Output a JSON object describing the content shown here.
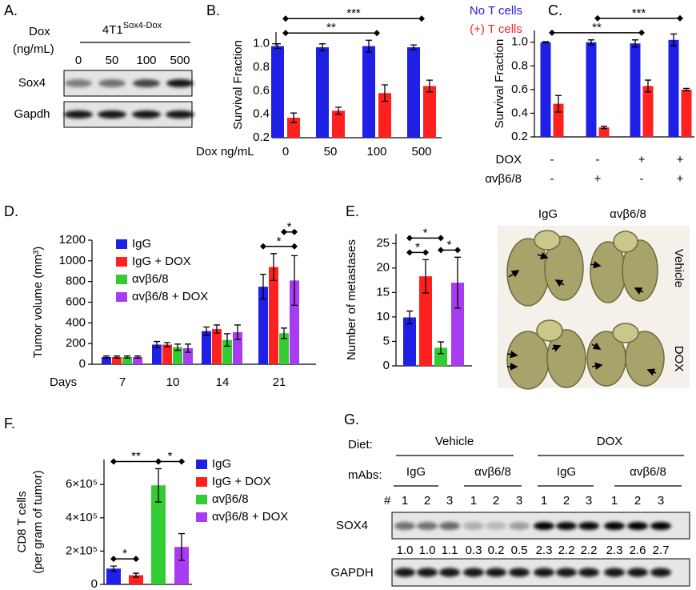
{
  "chart_data": [
    {
      "panel": "B.",
      "type": "bar",
      "ylabel": "Survival Fraction",
      "xlabel": "Dox ng/mL",
      "categories": [
        "0",
        "50",
        "100",
        "500"
      ],
      "series": [
        {
          "name": "No T cells",
          "color": "#1f1fe6",
          "values": [
            0.98,
            0.97,
            0.98,
            0.97
          ],
          "errors": [
            0.02,
            0.03,
            0.05,
            0.02
          ]
        },
        {
          "name": "(+) T cells",
          "color": "#ff2020",
          "values": [
            0.37,
            0.43,
            0.58,
            0.64
          ],
          "errors": [
            0.04,
            0.03,
            0.07,
            0.05
          ]
        }
      ],
      "ylim": [
        0.2,
        1.1
      ],
      "yticks": [
        0.2,
        0.4,
        0.6,
        0.8,
        {
          "value": 1,
          "label": "1.0"
        }
      ],
      "significance": [
        {
          "from": 0,
          "to": 2,
          "label": "**"
        },
        {
          "from": 0,
          "to": 3,
          "label": "***"
        }
      ]
    },
    {
      "panel": "C.",
      "type": "bar",
      "ylabel": "Survival Fraction",
      "categories": [
        null,
        null,
        null,
        null
      ],
      "x_rows": [
        {
          "label": "DOX",
          "values": [
            "-",
            "-",
            "+",
            "+"
          ]
        },
        {
          "label": "αvβ6/8",
          "values": [
            "-",
            "+",
            "-",
            "+"
          ]
        }
      ],
      "series": [
        {
          "color": "#1f1fe6",
          "values": [
            1.0,
            1.0,
            0.99,
            1.02
          ],
          "errors": [
            0.005,
            0.02,
            0.03,
            0.05
          ]
        },
        {
          "color": "#ff2020",
          "values": [
            0.48,
            0.28,
            0.63,
            0.6
          ],
          "errors": [
            0.07,
            0.01,
            0.05,
            0.01
          ]
        }
      ],
      "ylim": [
        0.2,
        1.1
      ],
      "yticks": [
        0.2,
        0.4,
        0.6,
        0.8,
        {
          "value": 1,
          "label": "1.0"
        }
      ],
      "significance": [
        {
          "from": 0,
          "to": 2,
          "label": "**"
        },
        {
          "from": 1,
          "to": 3,
          "label": "***"
        }
      ]
    },
    {
      "panel": "D.",
      "type": "bar",
      "ylabel": "Tumor volume (mm³)",
      "xlabel": "Days",
      "categories": [
        "7",
        "10",
        "14",
        "21"
      ],
      "series": [
        {
          "name": "IgG",
          "color": "#1f1fe6",
          "values": [
            70,
            190,
            320,
            750
          ],
          "errors": [
            10,
            30,
            40,
            120
          ]
        },
        {
          "name": "IgG + DOX",
          "color": "#ff2020",
          "values": [
            70,
            190,
            340,
            940
          ],
          "errors": [
            10,
            20,
            40,
            130
          ]
        },
        {
          "name": "αvβ6/8",
          "color": "#33cc33",
          "values": [
            70,
            165,
            235,
            300
          ],
          "errors": [
            10,
            30,
            60,
            50
          ]
        },
        {
          "name": "αvβ6/8 + DOX",
          "color": "#a83cf0",
          "values": [
            70,
            155,
            310,
            810
          ],
          "errors": [
            10,
            40,
            70,
            240
          ]
        }
      ],
      "ylim": [
        0,
        1200
      ],
      "yticks": [
        0,
        200,
        400,
        600,
        800,
        1000,
        1200
      ],
      "significance": [
        {
          "category": 3,
          "from_series": 0,
          "to_series": 3,
          "label": "*"
        },
        {
          "category": 3,
          "from_series": 2,
          "to_series": 3,
          "label": "*"
        }
      ]
    },
    {
      "panel": "E.",
      "type": "bar",
      "ylabel": "Number of metastases",
      "categories": [
        null,
        null,
        null,
        null
      ],
      "colors": [
        "#1f1fe6",
        "#ff2020",
        "#33cc33",
        "#a83cf0"
      ],
      "values": [
        9.9,
        18.3,
        3.7,
        17.0
      ],
      "errors": [
        1.3,
        3.4,
        1.2,
        5.2
      ],
      "ylim": [
        0,
        27
      ],
      "yticks": [
        0,
        5,
        10,
        15,
        20,
        25
      ],
      "significance": [
        {
          "from": 0,
          "to": 1,
          "label": "*"
        },
        {
          "from": 0,
          "to": 2,
          "label": "*"
        },
        {
          "from": 2,
          "to": 3,
          "label": "*"
        }
      ]
    },
    {
      "panel": "F.",
      "type": "bar",
      "ylabel": [
        "CD8 T cells",
        "(per gram of tumor)"
      ],
      "categories": [
        "IgG",
        "IgG + DOX",
        "αvβ6/8",
        "αvβ6/8 + DOX"
      ],
      "colors": [
        "#1f1fe6",
        "#ff2020",
        "#33cc33",
        "#a83cf0"
      ],
      "values": [
        95000,
        55000,
        595000,
        225000
      ],
      "errors": [
        15000,
        12000,
        100000,
        80000
      ],
      "ylim": [
        0,
        750000
      ],
      "yticks": [
        0,
        {
          "value": 200000,
          "label": "2×10⁵"
        },
        {
          "value": 400000,
          "label": "4×10⁵"
        },
        {
          "value": 600000,
          "label": "6×10⁵"
        }
      ],
      "significance": [
        {
          "from": 0,
          "to": 1,
          "label": "*"
        },
        {
          "from": 0,
          "to": 2,
          "label": "**"
        },
        {
          "from": 2,
          "to": 3,
          "label": "*"
        }
      ]
    }
  ],
  "blot_a": {
    "panel": "A.",
    "dose_label": [
      "Dox",
      "(ng/mL)"
    ],
    "cell_line": "4T1",
    "cell_line_sup": "Sox4-Dox",
    "lanes": [
      "0",
      "50",
      "100",
      "500"
    ],
    "rows": [
      "Sox4",
      "Gapdh"
    ]
  },
  "photo": {
    "columns": [
      "IgG",
      "αvβ6/8"
    ],
    "rows": [
      "Vehicle",
      "DOX"
    ]
  },
  "blot_g": {
    "panel": "G.",
    "diet_label": "Diet:",
    "diets": [
      "Vehicle",
      "DOX"
    ],
    "mabs_label": "mAbs:",
    "mabs": [
      "IgG",
      "αvβ6/8",
      "IgG",
      "αvβ6/8"
    ],
    "lane_label": "#",
    "lanes": [
      "1",
      "2",
      "3",
      "1",
      "2",
      "3",
      "1",
      "2",
      "3",
      "1",
      "2",
      "3"
    ],
    "rows": [
      "SOX4",
      "GAPDH"
    ],
    "quantification": [
      "1.0",
      "1.0",
      "1.1",
      "0.3",
      "0.2",
      "0.5",
      "2.3",
      "2.2",
      "2.2",
      "2.3",
      "2.6",
      "2.7"
    ]
  }
}
